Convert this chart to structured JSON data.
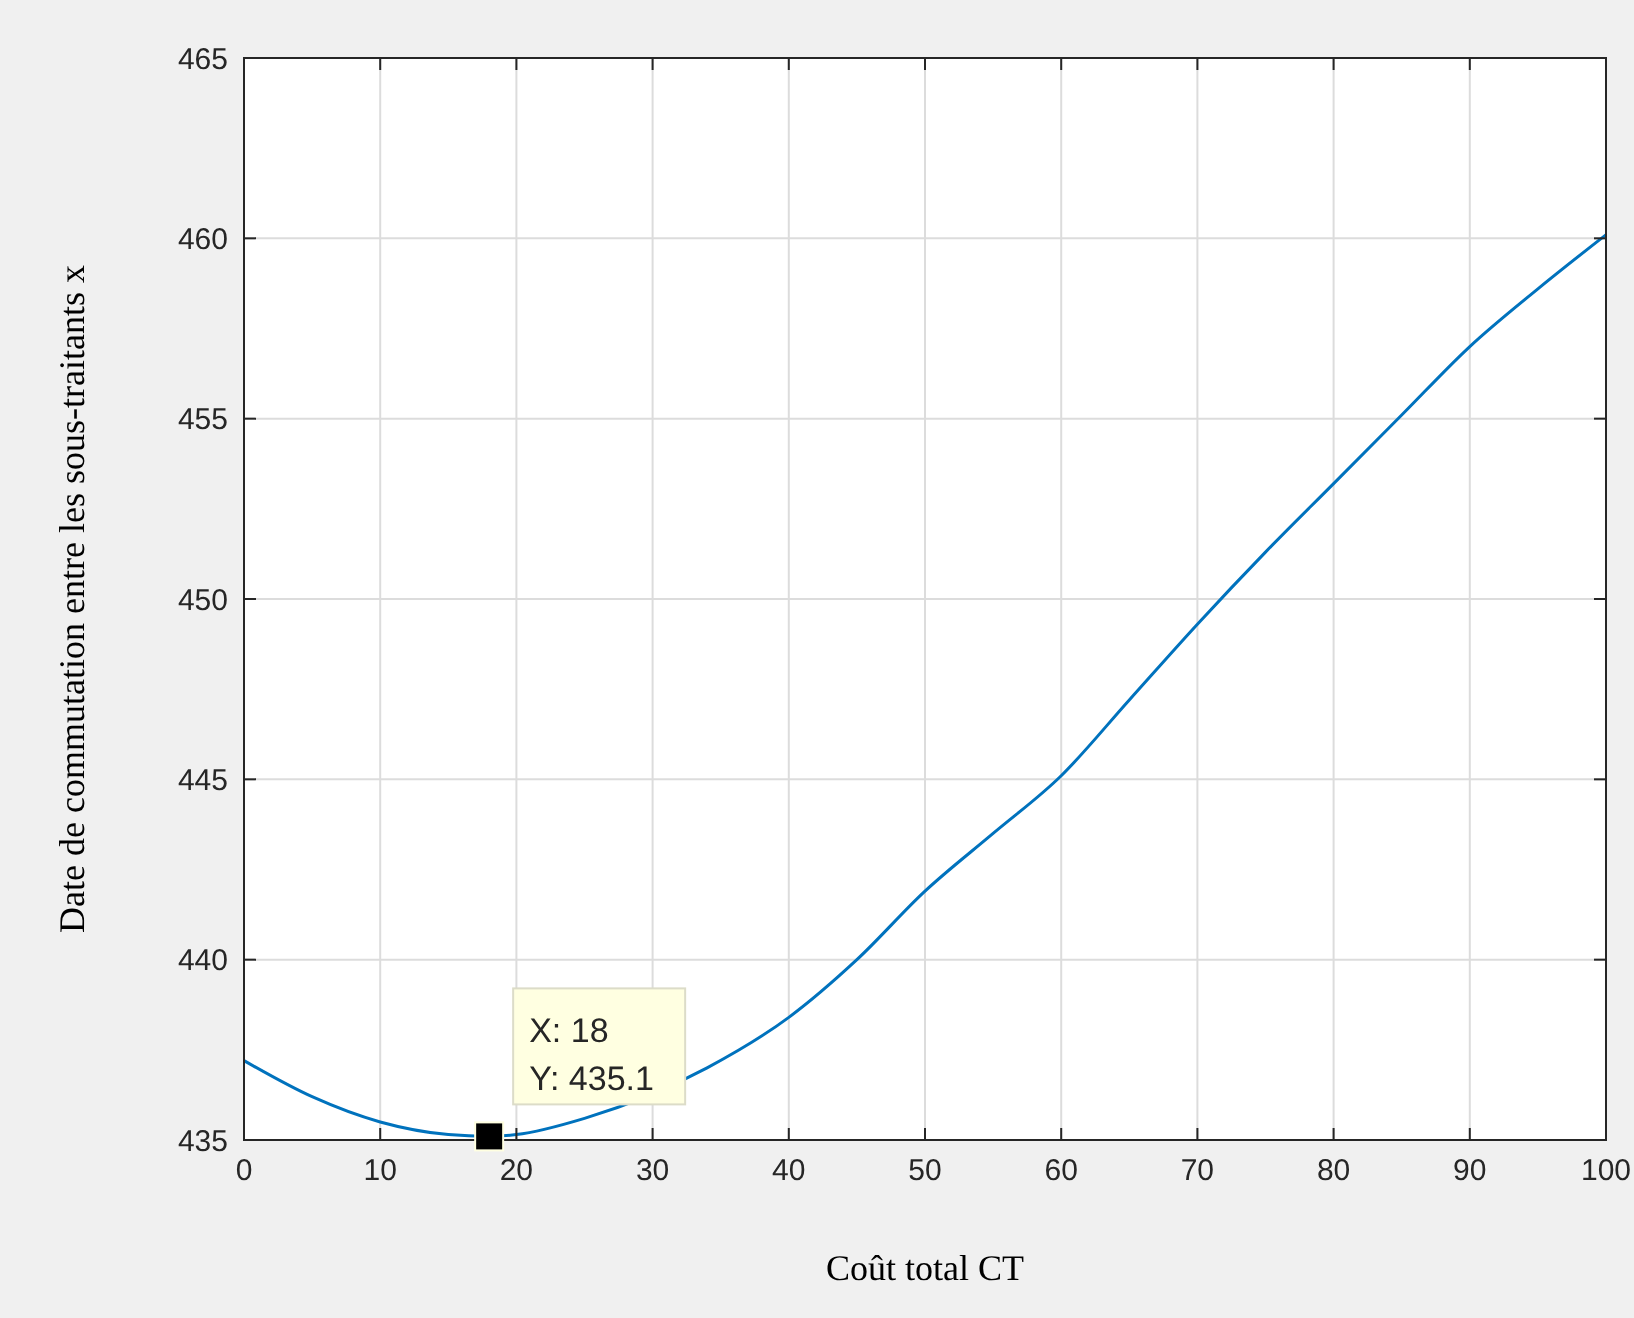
{
  "chart_data": {
    "type": "line",
    "xlabel": "Coût total CT",
    "ylabel": "Date de commutation entre les sous-traitants x",
    "x": [
      0,
      5,
      10,
      15,
      18,
      20,
      25,
      34,
      40,
      45,
      50,
      55,
      60,
      65,
      70,
      75,
      80,
      85,
      90,
      95,
      100
    ],
    "series": [
      {
        "color": "#0072bd",
        "values": [
          437.2,
          436.2,
          435.5,
          435.15,
          435.1,
          435.15,
          435.6,
          437.0,
          438.4,
          440.0,
          441.9,
          443.5,
          445.1,
          447.2,
          449.3,
          451.3,
          453.2,
          455.1,
          457.0,
          458.6,
          460.1
        ]
      }
    ],
    "xlim": [
      0,
      100
    ],
    "xticks": [
      0,
      10,
      20,
      30,
      40,
      50,
      60,
      70,
      80,
      90,
      100
    ],
    "ylim": [
      435,
      465
    ],
    "yticks": [
      435,
      440,
      445,
      450,
      455,
      460,
      465
    ],
    "grid": true,
    "marker": "none",
    "line_style": "solid",
    "annotations": [
      {
        "text": "X: 18\nY: 435.1",
        "x": 18,
        "y": 435.1
      }
    ]
  }
}
